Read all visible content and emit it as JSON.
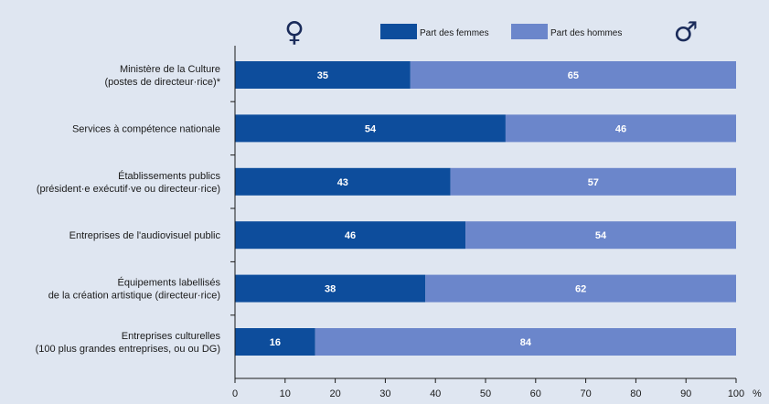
{
  "chart_data": {
    "type": "bar",
    "orientation": "horizontal",
    "stacked": true,
    "categories": [
      [
        "Ministère de la Culture",
        "(postes de directeur·rice)*"
      ],
      [
        "Services à compétence nationale"
      ],
      [
        "Établissements publics",
        "(président·e exécutif·ve ou directeur·rice)"
      ],
      [
        "Entreprises de l'audiovisuel public"
      ],
      [
        "Équipements labellisés",
        "de la création artistique (directeur·rice)"
      ],
      [
        "Entreprises culturelles",
        "(100 plus grandes entreprises, ou ou DG)"
      ]
    ],
    "series": [
      {
        "name": "Part des femmes",
        "values": [
          35,
          54,
          43,
          46,
          38,
          16
        ],
        "color": "#0d4d9c"
      },
      {
        "name": "Part des hommes",
        "values": [
          65,
          46,
          57,
          54,
          62,
          84
        ],
        "color": "#6b86cb"
      }
    ],
    "xlim": [
      0,
      100
    ],
    "xticks": [
      "0",
      "10",
      "20",
      "30",
      "40",
      "50",
      "60",
      "70",
      "80",
      "90",
      "100"
    ],
    "xunit": "%",
    "legend_position": "top",
    "left_symbol": "♀",
    "right_symbol": "♂",
    "grid": false
  }
}
